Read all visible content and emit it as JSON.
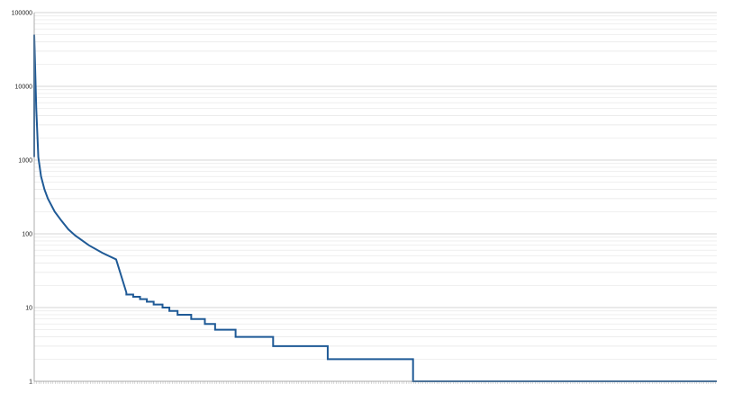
{
  "chart_data": {
    "type": "line",
    "title": "",
    "xlabel": "",
    "ylabel": "",
    "y_scale": "log",
    "ylim": [
      1,
      100000
    ],
    "y_tick_labels": [
      "100000",
      "10000",
      "1000",
      "100",
      "10",
      "1"
    ],
    "x_tick_labels_visible": false,
    "grid": true,
    "legend": "none",
    "colors": {
      "line": "#1f5a96",
      "major_grid": "#c8c8c8",
      "minor_grid": "#e6e6e6",
      "axis": "#9a9a9a"
    },
    "series": [
      {
        "x": [
          0,
          0.3,
          0.6,
          1,
          1.5,
          2,
          3,
          4,
          5,
          6,
          8,
          10,
          12,
          15,
          18,
          21,
          24,
          27,
          30,
          33,
          36,
          40,
          44,
          48,
          52,
          56,
          60,
          64,
          68,
          72,
          76,
          80,
          84,
          88,
          92,
          96,
          100
        ],
        "y": [
          50000,
          5000,
          1100,
          600,
          400,
          300,
          200,
          150,
          115,
          95,
          70,
          55,
          45,
          37,
          31,
          27,
          24,
          21,
          19,
          17,
          15,
          13,
          12,
          11,
          10,
          9,
          8,
          7,
          6,
          5,
          4,
          3,
          2,
          1,
          1,
          1,
          1
        ],
        "step_points": [
          [
            13.5,
            16
          ],
          [
            14.5,
            15
          ],
          [
            15.5,
            14
          ],
          [
            16.5,
            13
          ],
          [
            17.5,
            12
          ],
          [
            18.8,
            11
          ],
          [
            19.8,
            10
          ],
          [
            21,
            9
          ],
          [
            23,
            8
          ],
          [
            25,
            7
          ],
          [
            26.5,
            6
          ],
          [
            29.5,
            5
          ],
          [
            35,
            4
          ],
          [
            43,
            3
          ],
          [
            55.5,
            2
          ],
          [
            100,
            1
          ]
        ]
      }
    ]
  }
}
